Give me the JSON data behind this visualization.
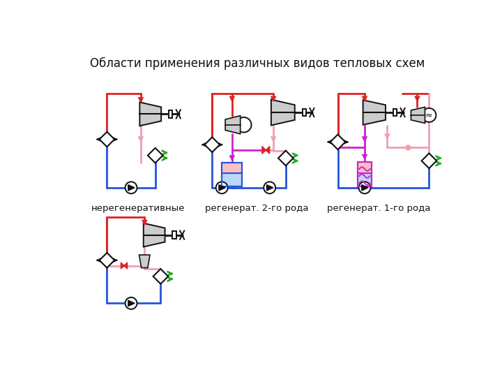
{
  "title": "Области применения различных видов тепловых схем",
  "title_fontsize": 12,
  "labels": {
    "d1": "нерегенеративные",
    "d2": "регенерат. 2-го рода",
    "d3": "регенерат. 1-го рода"
  },
  "colors": {
    "red": "#dd2222",
    "blue": "#2255dd",
    "pink": "#f0a0b0",
    "magenta": "#cc22cc",
    "green": "#22aa22",
    "gray_light": "#cccccc",
    "gray_mid": "#aaaaaa",
    "black": "#111111",
    "white": "#ffffff",
    "light_blue": "#b0d0f8",
    "light_pink": "#fcc0c0",
    "tank_blue": "#b8d8f8",
    "tank_pink": "#f8c0c0"
  },
  "lw": 2.0
}
